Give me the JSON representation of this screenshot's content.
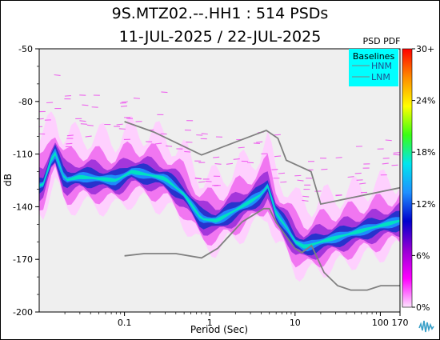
{
  "chart_data": {
    "type": "heatmap",
    "title": "9S.MTZ02.--.HH1 : 514 PSDs",
    "subtitle": "11-JUL-2025 / 22-JUL-2025",
    "xlabel": "Period (Sec)",
    "ylabel": "dB",
    "x_scale": "log",
    "xlim": [
      0.01,
      170
    ],
    "ylim": [
      -200,
      -50
    ],
    "x_ticks": [
      "0.1",
      "1",
      "10",
      "100",
      "170"
    ],
    "x_tick_values": [
      0.1,
      1,
      10,
      100,
      170
    ],
    "y_ticks": [
      "-50",
      "-80",
      "-110",
      "-140",
      "-170",
      "-200"
    ],
    "y_tick_values": [
      -50,
      -80,
      -110,
      -140,
      -170,
      -200
    ],
    "colorbar": {
      "title": "PSD PDF",
      "ticks": [
        "30+",
        "24%",
        "18%",
        "12%",
        "6%",
        "0%"
      ],
      "tick_values": [
        30,
        24,
        18,
        12,
        6,
        0
      ],
      "colors": [
        "#ff0000",
        "#ff8c00",
        "#ffff00",
        "#39ff14",
        "#00e5ee",
        "#1e90ff",
        "#0000cd",
        "#9400d3",
        "#ff00ff",
        "#ffe4ff"
      ]
    },
    "legend": {
      "title": "Baselines",
      "entries": [
        "HNM",
        "LNM"
      ],
      "placement": "top-right",
      "background": "#00ffff"
    },
    "baselines": [
      {
        "name": "HNM",
        "x": [
          0.1,
          0.22,
          0.8,
          3.8,
          4.6,
          6.3,
          7.9,
          15.4,
          20,
          354
        ],
        "y": [
          -91.5,
          -97.4,
          -110.5,
          -98,
          -96.5,
          -101,
          -113.5,
          -120,
          -138.5,
          -126
        ]
      },
      {
        "name": "LNM",
        "x": [
          0.1,
          0.17,
          0.4,
          0.8,
          1.24,
          2.4,
          4.3,
          5.0,
          6.0,
          10.0,
          12.0,
          15.6,
          21.9,
          31.6,
          45.0,
          70.0,
          101.0,
          154.0,
          170.0
        ],
        "y": [
          -168.0,
          -166.7,
          -166.7,
          -169.2,
          -163.7,
          -148.6,
          -141.1,
          -141.1,
          -149.0,
          -163.8,
          -166.2,
          -162.1,
          -177.5,
          -185.0,
          -187.5,
          -187.5,
          -185.0,
          -185.0,
          -185.0
        ]
      }
    ],
    "pdf_mode": {
      "x": [
        0.011,
        0.015,
        0.02,
        0.03,
        0.05,
        0.08,
        0.12,
        0.2,
        0.3,
        0.5,
        0.8,
        1.2,
        2.0,
        3.0,
        4.0,
        4.8,
        6.0,
        8.0,
        10.0,
        13.0,
        20.0,
        40.0,
        80.0,
        170.0
      ],
      "y": [
        -128,
        -108,
        -125,
        -123,
        -124,
        -125,
        -120,
        -122,
        -124,
        -133,
        -147,
        -148,
        -142,
        -137,
        -133,
        -128,
        -144,
        -152,
        -160,
        -163,
        -160,
        -156,
        -152,
        -148
      ]
    }
  }
}
